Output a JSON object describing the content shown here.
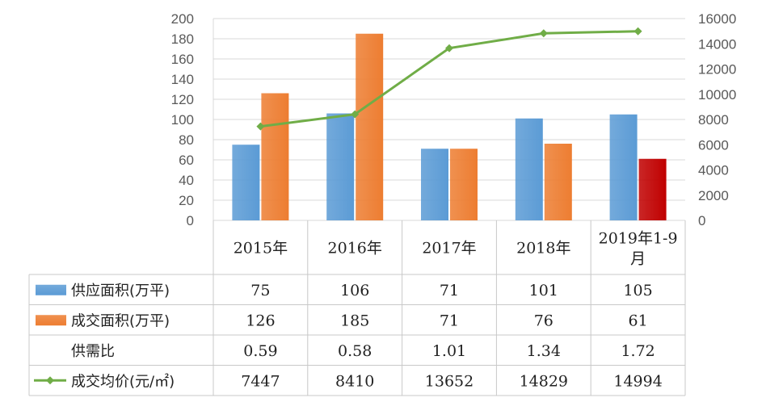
{
  "chart_data": {
    "type": "bar",
    "categories": [
      "2015年",
      "2016年",
      "2017年",
      "2018年",
      "2019年1-9月"
    ],
    "category_lines": [
      [
        "2015年"
      ],
      [
        "2016年"
      ],
      [
        "2017年"
      ],
      [
        "2018年"
      ],
      [
        "2019年1-9",
        "月"
      ]
    ],
    "ylim": [
      0,
      200
    ],
    "y_ticks": [
      "0",
      "20",
      "40",
      "60",
      "80",
      "100",
      "120",
      "140",
      "160",
      "180",
      "200"
    ],
    "y2lim": [
      0,
      16000
    ],
    "y2_ticks": [
      "0",
      "2000",
      "4000",
      "6000",
      "8000",
      "10000",
      "12000",
      "14000",
      "16000"
    ],
    "legend_placement": "table-left",
    "grid": true,
    "series": [
      {
        "name": "供应面积(万平)",
        "type": "bar",
        "axis": "left",
        "color": "#5b9bd5",
        "values": [
          75,
          106,
          71,
          101,
          105
        ],
        "labels": [
          "75",
          "106",
          "71",
          "101",
          "105"
        ]
      },
      {
        "name": "成交面积(万平)",
        "type": "bar",
        "axis": "left",
        "color": "#ed7d31",
        "highlight_color": "#c00000",
        "highlight_index": 4,
        "values": [
          126,
          185,
          71,
          76,
          61
        ],
        "labels": [
          "126",
          "185",
          "71",
          "76",
          "61"
        ]
      },
      {
        "name": "供需比",
        "type": "table-only",
        "values": [
          0.59,
          0.58,
          1.01,
          1.34,
          1.72
        ],
        "labels": [
          "0.59",
          "0.58",
          "1.01",
          "1.34",
          "1.72"
        ]
      },
      {
        "name": "成交均价(元/㎡)",
        "type": "line",
        "axis": "right",
        "color": "#70ad47",
        "values": [
          7447,
          8410,
          13652,
          14829,
          14994
        ],
        "labels": [
          "7447",
          "8410",
          "13652",
          "14829",
          "14994"
        ]
      }
    ]
  }
}
